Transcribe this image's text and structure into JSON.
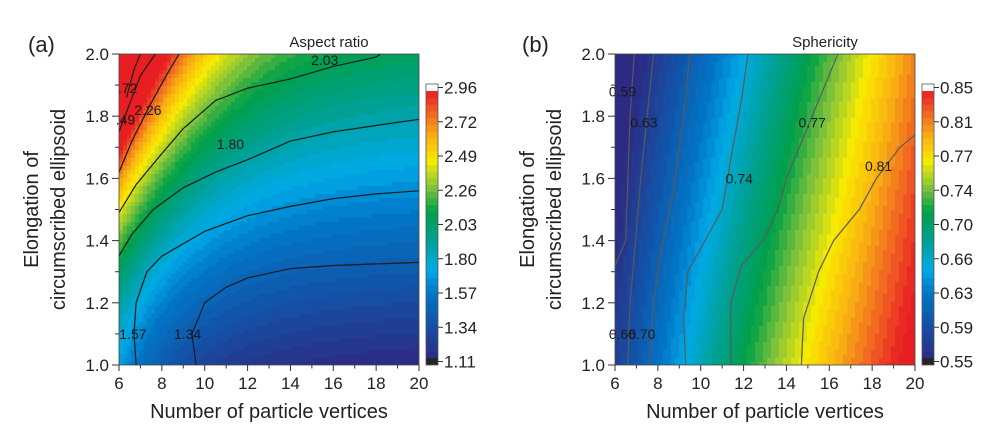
{
  "chart_data": [
    {
      "type": "heatmap",
      "panel_label": "(a)",
      "title": "Aspect ratio",
      "xlabel": "Number of particle vertices",
      "ylabel_lines": [
        "Elongation of",
        "circumscribed ellipsoid"
      ],
      "xlim": [
        6,
        20
      ],
      "ylim": [
        1.0,
        2.0
      ],
      "x_ticks": [
        6,
        8,
        10,
        12,
        14,
        16,
        18,
        20
      ],
      "x_tick_labels": [
        "6",
        "8",
        "10",
        "12",
        "14",
        "16",
        "18",
        "20"
      ],
      "y_ticks": [
        1.0,
        1.2,
        1.4,
        1.6,
        1.8,
        2.0
      ],
      "y_tick_labels": [
        "1.0",
        "1.2",
        "1.4",
        "1.6",
        "1.8",
        "2.0"
      ],
      "colorbar": {
        "range": [
          1.11,
          2.96
        ],
        "ticks": [
          1.11,
          1.34,
          1.57,
          1.8,
          2.03,
          2.26,
          2.49,
          2.72,
          2.96
        ],
        "tick_labels": [
          "1.11",
          "1.34",
          "1.57",
          "1.80",
          "2.03",
          "2.26",
          "2.49",
          "2.72",
          "2.96"
        ],
        "colormap": "blue-cyan-green-yellow-red"
      },
      "contours": [
        {
          "level": 1.34,
          "label": "1.34",
          "points": [
            [
              9.6,
              1.0
            ],
            [
              9.4,
              1.1
            ],
            [
              10,
              1.2
            ],
            [
              11,
              1.25
            ],
            [
              12,
              1.28
            ],
            [
              14,
              1.31
            ],
            [
              16,
              1.32
            ],
            [
              18,
              1.325
            ],
            [
              20,
              1.33
            ]
          ]
        },
        {
          "level": 1.57,
          "label": "1.57",
          "points": [
            [
              6.8,
              1.0
            ],
            [
              6.7,
              1.1
            ],
            [
              6.8,
              1.2
            ],
            [
              7.3,
              1.3
            ],
            [
              8,
              1.35
            ],
            [
              10,
              1.43
            ],
            [
              12,
              1.48
            ],
            [
              14,
              1.51
            ],
            [
              16,
              1.535
            ],
            [
              18,
              1.55
            ],
            [
              20,
              1.56
            ]
          ]
        },
        {
          "level": 1.8,
          "label": "1.80",
          "points": [
            [
              6,
              1.35
            ],
            [
              6.6,
              1.42
            ],
            [
              7.6,
              1.5
            ],
            [
              9,
              1.57
            ],
            [
              10.5,
              1.62
            ],
            [
              12,
              1.66
            ],
            [
              14,
              1.72
            ],
            [
              16,
              1.75
            ],
            [
              18,
              1.77
            ],
            [
              20,
              1.79
            ]
          ]
        },
        {
          "level": 2.03,
          "label": "2.03",
          "points": [
            [
              6,
              1.49
            ],
            [
              6.8,
              1.58
            ],
            [
              8,
              1.68
            ],
            [
              9,
              1.76
            ],
            [
              10.5,
              1.85
            ],
            [
              12,
              1.89
            ],
            [
              14,
              1.92
            ],
            [
              16,
              1.96
            ],
            [
              18,
              1.99
            ],
            [
              18.2,
              2.0
            ]
          ]
        },
        {
          "level": 2.26,
          "label": "2.26",
          "points": [
            [
              6,
              1.62
            ],
            [
              6.6,
              1.72
            ],
            [
              7.4,
              1.83
            ],
            [
              8.2,
              1.93
            ],
            [
              8.8,
              2.0
            ]
          ]
        },
        {
          "level": 2.49,
          "label": "2.49",
          "points": [
            [
              6,
              1.75
            ],
            [
              6.5,
              1.84
            ],
            [
              7,
              1.93
            ],
            [
              7.7,
              2.0
            ]
          ]
        },
        {
          "level": 2.72,
          "label": "2.72",
          "points": [
            [
              6.35,
              1.86
            ],
            [
              6.7,
              1.95
            ],
            [
              7,
              2.0
            ]
          ]
        }
      ],
      "contour_labels": [
        {
          "text": "2.03",
          "x": 15.6,
          "y": 1.98
        },
        {
          "text": "2.26",
          "x": 7.35,
          "y": 1.82
        },
        {
          "text": "1.80",
          "x": 11.2,
          "y": 1.71
        },
        {
          "text": ".72",
          "x": 6.4,
          "y": 1.89
        },
        {
          "text": ".49",
          "x": 6.3,
          "y": 1.79
        },
        {
          "text": "1.57",
          "x": 6.65,
          "y": 1.1
        },
        {
          "text": "1.34",
          "x": 9.2,
          "y": 1.1
        }
      ]
    },
    {
      "type": "heatmap",
      "panel_label": "(b)",
      "title": "Sphericity",
      "xlabel": "Number of particle vertices",
      "ylabel_lines": [
        "Elongation of",
        "circumscribed ellipsoid"
      ],
      "xlim": [
        6,
        20
      ],
      "ylim": [
        1.0,
        2.0
      ],
      "x_ticks": [
        6,
        8,
        10,
        12,
        14,
        16,
        18,
        20
      ],
      "x_tick_labels": [
        "6",
        "8",
        "10",
        "12",
        "14",
        "16",
        "18",
        "20"
      ],
      "y_ticks": [
        1.0,
        1.2,
        1.4,
        1.6,
        1.8,
        2.0
      ],
      "y_tick_labels": [
        "1.0",
        "1.2",
        "1.4",
        "1.6",
        "1.8",
        "2.0"
      ],
      "colorbar": {
        "range": [
          0.55,
          0.85
        ],
        "ticks": [
          0.55,
          0.59,
          0.63,
          0.66,
          0.7,
          0.74,
          0.77,
          0.81,
          0.85
        ],
        "tick_labels": [
          "0.55",
          "0.59",
          "0.63",
          "0.66",
          "0.70",
          "0.74",
          "0.77",
          "0.81",
          "0.85"
        ],
        "colormap": "blue-cyan-green-yellow-red"
      },
      "contours": [
        {
          "level": 0.59,
          "label": "0.59",
          "points": [
            [
              6,
              1.32
            ],
            [
              6.5,
              1.4
            ],
            [
              6.6,
              1.6
            ],
            [
              6.7,
              1.8
            ],
            [
              6.9,
              2.0
            ]
          ]
        },
        {
          "level": 0.63,
          "label": "0.63",
          "points": [
            [
              6.6,
              1.0
            ],
            [
              6.7,
              1.2
            ],
            [
              6.9,
              1.35
            ],
            [
              7.2,
              1.6
            ],
            [
              7.5,
              1.8
            ],
            [
              7.8,
              2.0
            ]
          ]
        },
        {
          "level": 0.66,
          "label": "0.66",
          "points": [
            [
              7.6,
              1.0
            ],
            [
              7.8,
              1.2
            ],
            [
              8.1,
              1.35
            ],
            [
              8.7,
              1.55
            ],
            [
              9.2,
              1.8
            ],
            [
              9.5,
              2.0
            ]
          ]
        },
        {
          "level": 0.7,
          "label": "0.70",
          "points": [
            [
              9.3,
              1.0
            ],
            [
              9.2,
              1.15
            ],
            [
              9.4,
              1.3
            ],
            [
              10.2,
              1.4
            ],
            [
              11,
              1.5
            ],
            [
              11.5,
              1.7
            ],
            [
              11.9,
              1.85
            ],
            [
              12.2,
              2.0
            ]
          ]
        },
        {
          "level": 0.74,
          "label": "0.74",
          "points": [
            [
              11.4,
              1.0
            ],
            [
              11.4,
              1.2
            ],
            [
              11.9,
              1.32
            ],
            [
              12.9,
              1.4
            ],
            [
              13.6,
              1.5
            ],
            [
              14,
              1.6
            ],
            [
              14.6,
              1.7
            ],
            [
              15.5,
              1.85
            ],
            [
              16.4,
              2.0
            ]
          ]
        },
        {
          "level": 0.77,
          "label": "0.77",
          "points": [
            [
              14.7,
              1.0
            ],
            [
              14.8,
              1.15
            ],
            [
              15.5,
              1.3
            ],
            [
              16.2,
              1.4
            ],
            [
              17.4,
              1.5
            ],
            [
              18.2,
              1.6
            ],
            [
              19.3,
              1.7
            ],
            [
              20,
              1.74
            ]
          ]
        }
      ],
      "contour_labels": [
        {
          "text": "0.59",
          "x": 6.35,
          "y": 1.88
        },
        {
          "text": "0.63",
          "x": 7.35,
          "y": 1.78
        },
        {
          "text": "0.74",
          "x": 11.8,
          "y": 1.6
        },
        {
          "text": "0.77",
          "x": 15.2,
          "y": 1.78
        },
        {
          "text": "0.81",
          "x": 18.3,
          "y": 1.64
        },
        {
          "text": "0.66",
          "x": 6.35,
          "y": 1.1
        },
        {
          "text": "0.70",
          "x": 7.25,
          "y": 1.1
        }
      ]
    }
  ]
}
